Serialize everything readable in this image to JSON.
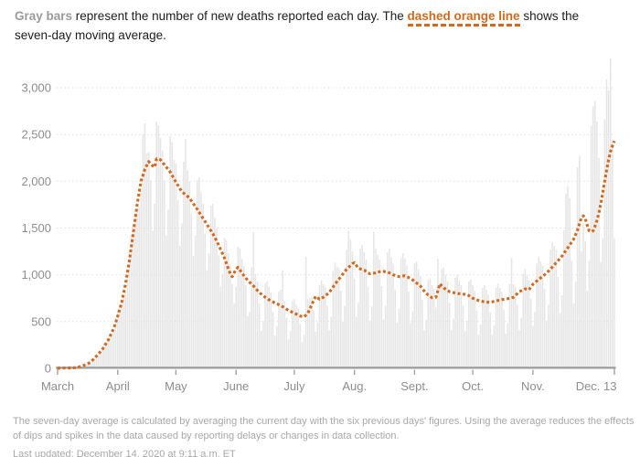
{
  "header": {
    "parts": [
      {
        "text": "Gray bars"
      },
      {
        "text": " represent the number of new deaths reported each day. The "
      },
      {
        "text": "dashed orange line"
      },
      {
        "text": " shows the seven-day moving average."
      }
    ]
  },
  "footnote": {
    "line1": "The seven-day average is calculated by averaging the current day with the six previous days' figures. Using the average reduces the effects",
    "line2": "of dips and spikes in the data caused by reporting delays or changes in data collection."
  },
  "last_updated": "Last updated: December 14, 2020 at 9:11 a.m. ET",
  "colors": {
    "accent": "#d2691e",
    "bar": "#e6e6e6",
    "gridline": "#dcdcdc",
    "axis": "#9b9b9b",
    "tick_label": "#8d8d8d",
    "gray_label": "#9a9a9a",
    "text": "#1c1c1c",
    "footnote": "#a8a8a8"
  },
  "chart_data": {
    "type": "bar",
    "subtype": "daily-bars-with-dashed-moving-average-line",
    "start_date": "2020-03-01",
    "end_date": "2020-12-13",
    "x_tick_labels": [
      "March",
      "April",
      "May",
      "June",
      "July",
      "Aug.",
      "Sept.",
      "Oct.",
      "Nov.",
      "Dec. 13"
    ],
    "x_tick_days": [
      0,
      31,
      61,
      92,
      122,
      153,
      184,
      214,
      245,
      287
    ],
    "y_ticks": [
      0,
      500,
      1000,
      1500,
      2000,
      2500,
      3000
    ],
    "y_tick_labels": [
      "0",
      "500",
      "1,000",
      "1,500",
      "2,000",
      "2,500",
      "3,000"
    ],
    "ylim": [
      0,
      3400
    ],
    "grid": "dotted-horizontal",
    "legend": "none",
    "series": [
      {
        "name": "New deaths reported each day",
        "type": "bar",
        "values": [
          1,
          1,
          2,
          2,
          3,
          3,
          4,
          4,
          6,
          8,
          9,
          16,
          23,
          27,
          32,
          43,
          59,
          72,
          92,
          112,
          127,
          141,
          168,
          216,
          256,
          283,
          312,
          336,
          356,
          409,
          535,
          616,
          668,
          728,
          784,
          828,
          974,
          1242,
          1430,
          1537,
          1664,
          1715,
          1725,
          1900,
          2500,
          2620,
          2300,
          2310,
          2010,
          1470,
          1760,
          2640,
          2600,
          2460,
          2330,
          2010,
          1420,
          1700,
          2480,
          2420,
          2230,
          2190,
          1800,
          1310,
          1550,
          2210,
          2450,
          2110,
          2000,
          1650,
          1200,
          1420,
          2010,
          2040,
          1880,
          1760,
          1440,
          1050,
          1230,
          1740,
          1760,
          1610,
          1500,
          1210,
          870,
          1010,
          1390,
          1370,
          1230,
          1110,
          900,
          690,
          870,
          1300,
          1280,
          1170,
          1090,
          890,
          560,
          600,
          1080,
          1460,
          1010,
          930,
          690,
          400,
          505,
          910,
          930,
          870,
          810,
          600,
          350,
          450,
          820,
          840,
          1050,
          720,
          540,
          310,
          400,
          720,
          740,
          680,
          640,
          480,
          280,
          360,
          1190,
          740,
          750,
          760,
          620,
          390,
          490,
          890,
          940,
          900,
          870,
          670,
          410,
          550,
          1040,
          1130,
          1090,
          1070,
          830,
          500,
          670,
          1270,
          1470,
          1380,
          1250,
          960,
          550,
          700,
          1280,
          1320,
          1240,
          1160,
          870,
          510,
          660,
          1460,
          1280,
          1210,
          1160,
          880,
          520,
          670,
          1240,
          1280,
          1190,
          1120,
          840,
          490,
          640,
          1180,
          1230,
          1170,
          1100,
          820,
          480,
          610,
          1120,
          1140,
          1060,
          990,
          730,
          410,
          520,
          940,
          960,
          890,
          850,
          650,
          1170,
          900,
          1060,
          1080,
          1000,
          930,
          700,
          410,
          530,
          970,
          1000,
          940,
          890,
          670,
          400,
          510,
          930,
          950,
          890,
          830,
          620,
          360,
          470,
          860,
          890,
          840,
          790,
          600,
          360,
          460,
          860,
          910,
          860,
          820,
          630,
          370,
          480,
          900,
          1180,
          900,
          870,
          680,
          410,
          540,
          1010,
          1060,
          1000,
          940,
          740,
          450,
          600,
          1120,
          1190,
          1140,
          1100,
          850,
          510,
          680,
          1270,
          1350,
          1310,
          1270,
          980,
          590,
          780,
          1480,
          1870,
          1950,
          1820,
          1150,
          690,
          930,
          2150,
          2270,
          1250,
          1550,
          1360,
          830,
          1150,
          2590,
          2800,
          2860,
          2640,
          2250,
          1140,
          1390,
          2660,
          3090,
          2970,
          3310,
          2440,
          1390
        ]
      },
      {
        "name": "Seven-day moving average",
        "type": "dashed_line",
        "values": [
          2,
          2,
          2,
          3,
          3,
          3,
          4,
          5,
          6,
          7,
          8,
          15,
          22,
          28,
          35,
          45,
          55,
          65,
          87,
          108,
          130,
          153,
          177,
          200,
          233,
          267,
          300,
          343,
          387,
          430,
          495,
          560,
          630,
          700,
          800,
          900,
          1025,
          1150,
          1300,
          1450,
          1600,
          1750,
          1875,
          2000,
          2065,
          2130,
          2170,
          2210,
          2180,
          2165,
          2150,
          2240,
          2235,
          2230,
          2205,
          2180,
          2153,
          2127,
          2100,
          2063,
          2027,
          1990,
          1957,
          1923,
          1890,
          1873,
          1855,
          1838,
          1820,
          1790,
          1760,
          1730,
          1700,
          1668,
          1635,
          1603,
          1570,
          1538,
          1505,
          1473,
          1440,
          1400,
          1360,
          1320,
          1273,
          1227,
          1180,
          1123,
          1067,
          1010,
          980,
          1020,
          1060,
          1080,
          1050,
          1020,
          993,
          967,
          940,
          920,
          900,
          880,
          857,
          833,
          810,
          793,
          777,
          760,
          747,
          733,
          720,
          710,
          700,
          690,
          680,
          670,
          660,
          647,
          633,
          620,
          610,
          600,
          590,
          580,
          570,
          560,
          555,
          550,
          570,
          590,
          635,
          680,
          725,
          770,
          755,
          740,
          750,
          760,
          777,
          793,
          810,
          840,
          870,
          900,
          927,
          953,
          980,
          1007,
          1033,
          1060,
          1080,
          1100,
          1120,
          1130,
          1100,
          1070,
          1063,
          1057,
          1050,
          1037,
          1023,
          1010,
          1013,
          1017,
          1020,
          1027,
          1033,
          1040,
          1037,
          1033,
          1030,
          1020,
          1010,
          1000,
          993,
          987,
          980,
          983,
          987,
          990,
          980,
          970,
          960,
          945,
          930,
          913,
          897,
          880,
          853,
          827,
          800,
          785,
          770,
          755,
          758,
          760,
          830,
          905,
          883,
          860,
          847,
          833,
          820,
          815,
          810,
          805,
          802,
          798,
          795,
          793,
          792,
          790,
          777,
          763,
          750,
          742,
          733,
          725,
          720,
          715,
          710,
          708,
          707,
          705,
          710,
          715,
          720,
          725,
          730,
          735,
          738,
          742,
          745,
          750,
          755,
          760,
          780,
          800,
          820,
          830,
          840,
          850,
          845,
          840,
          870,
          900,
          917,
          933,
          950,
          967,
          983,
          1000,
          1020,
          1040,
          1060,
          1083,
          1107,
          1130,
          1153,
          1177,
          1200,
          1230,
          1260,
          1290,
          1320,
          1350,
          1380,
          1430,
          1480,
          1545,
          1610,
          1630,
          1600,
          1530,
          1470,
          1460,
          1470,
          1520,
          1580,
          1660,
          1760,
          1880,
          2000,
          2120,
          2230,
          2320,
          2380,
          2430
        ]
      }
    ]
  }
}
